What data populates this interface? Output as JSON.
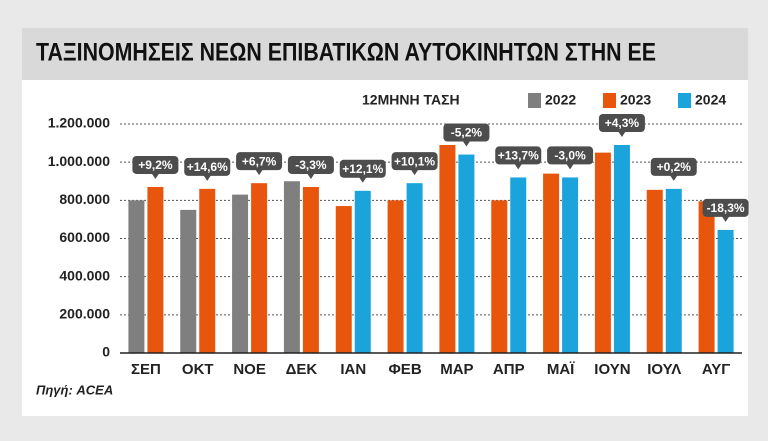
{
  "chart_data": {
    "type": "bar",
    "title": "ΤΑΞΙΝΟΜΗΣΕΙΣ ΝΕΩΝ ΕΠΙΒΑΤΙΚΩΝ ΑΥΤΟΚΙΝΗΤΩΝ ΣΤΗΝ ΕΕ",
    "subtitle": "12ΜΗΝΗ ΤΑΣΗ",
    "source": "Πηγή: ACEA",
    "categories": [
      "ΣΕΠ",
      "ΟΚΤ",
      "ΝΟΕ",
      "ΔΕΚ",
      "ΙΑΝ",
      "ΦΕΒ",
      "ΜΑΡ",
      "ΑΠΡ",
      "ΜΑΪ",
      "ΙΟΥΝ",
      "ΙΟΥΛ",
      "ΑΥΓ"
    ],
    "series": [
      {
        "name": "2022",
        "color": "#7f7f7f",
        "values": [
          800000,
          750000,
          830000,
          900000,
          null,
          null,
          null,
          null,
          null,
          null,
          null,
          null
        ]
      },
      {
        "name": "2023",
        "color": "#e8560e",
        "values": [
          870000,
          860000,
          890000,
          870000,
          770000,
          800000,
          1090000,
          800000,
          940000,
          1050000,
          855000,
          795000
        ]
      },
      {
        "name": "2024",
        "color": "#1ba3dc",
        "values": [
          null,
          null,
          null,
          null,
          850000,
          890000,
          1040000,
          920000,
          920000,
          1090000,
          860000,
          645000
        ]
      }
    ],
    "annotations": [
      "+9,2%",
      "+14,6%",
      "+6,7%",
      "-3,3%",
      "+12,1%",
      "+10,1%",
      "-5,2%",
      "+13,7%",
      "-3,0%",
      "+4,3%",
      "+0,2%",
      "-18,3%"
    ],
    "ylim": [
      0,
      1200000
    ],
    "yticks": [
      0,
      {
        "value": 200000,
        "label": "200.000"
      },
      {
        "value": 400000,
        "label": "400.000"
      },
      {
        "value": 600000,
        "label": "600.000"
      },
      {
        "value": 800000,
        "label": "800.000"
      },
      {
        "value": 1000000,
        "label": "1.000.000"
      },
      {
        "value": 1200000,
        "label": "1.200.000"
      }
    ],
    "grid": true,
    "legend": "top-right"
  }
}
